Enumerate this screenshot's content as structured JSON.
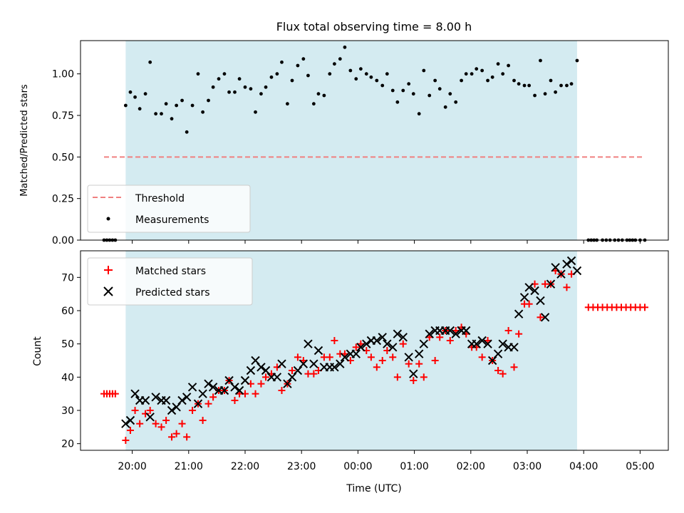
{
  "chart_data": [
    {
      "type": "scatter",
      "title": "Flux total observing time = 8.00 h",
      "ylabel": "Matched/Predicted stars",
      "ylim": [
        0,
        1.2
      ],
      "yticks": [
        "0.00",
        "0.25",
        "0.50",
        "0.75",
        "1.00"
      ],
      "yticks_values": [
        0,
        0.25,
        0.5,
        0.75,
        1.0
      ],
      "threshold": {
        "name": "Threshold",
        "value": 0.5,
        "color": "#f08080",
        "style": "dashed",
        "x_start": "19:30",
        "x_end": "05:05"
      },
      "observing_window": {
        "start": "19:53",
        "end": "03:53",
        "color": "#d4ebf1"
      },
      "legend": {
        "placement": "lower-left",
        "entries": [
          "Threshold",
          "Measurements"
        ]
      },
      "series": [
        {
          "name": "Measurements",
          "color": "#000000",
          "marker": "dot",
          "x": [
            "19:30",
            "19:33",
            "19:36",
            "19:39",
            "19:42",
            "19:53",
            "19:58",
            "20:03",
            "20:08",
            "20:14",
            "20:19",
            "20:25",
            "20:31",
            "20:36",
            "20:42",
            "20:47",
            "20:53",
            "20:58",
            "21:04",
            "21:10",
            "21:15",
            "21:21",
            "21:26",
            "21:32",
            "21:38",
            "21:43",
            "21:49",
            "21:54",
            "22:00",
            "22:06",
            "22:11",
            "22:17",
            "22:22",
            "22:28",
            "22:34",
            "22:39",
            "22:45",
            "22:50",
            "22:56",
            "23:02",
            "23:07",
            "23:13",
            "23:18",
            "23:24",
            "23:30",
            "23:35",
            "23:41",
            "23:46",
            "23:52",
            "23:58",
            "00:03",
            "00:09",
            "00:14",
            "00:20",
            "00:26",
            "00:31",
            "00:37",
            "00:42",
            "00:48",
            "00:54",
            "00:59",
            "01:05",
            "01:10",
            "01:16",
            "01:22",
            "01:27",
            "01:33",
            "01:38",
            "01:44",
            "01:50",
            "01:55",
            "02:01",
            "02:06",
            "02:12",
            "02:18",
            "02:23",
            "02:29",
            "02:34",
            "02:40",
            "02:46",
            "02:51",
            "02:57",
            "03:02",
            "03:08",
            "03:14",
            "03:19",
            "03:25",
            "03:30",
            "03:36",
            "03:42",
            "03:47",
            "03:53",
            "04:05",
            "04:08",
            "04:11",
            "04:14",
            "04:20",
            "04:24",
            "04:28",
            "04:33",
            "04:37",
            "04:41",
            "04:46",
            "04:49",
            "04:52",
            "04:55",
            "05:00",
            "05:05"
          ],
          "y": [
            0,
            0,
            0,
            0,
            0,
            0.81,
            0.89,
            0.86,
            0.79,
            0.88,
            1.07,
            0.76,
            0.76,
            0.82,
            0.73,
            0.81,
            0.84,
            0.65,
            0.81,
            1.0,
            0.77,
            0.84,
            0.92,
            0.97,
            1.0,
            0.89,
            0.89,
            0.97,
            0.92,
            0.91,
            0.77,
            0.88,
            0.92,
            0.98,
            1.0,
            1.07,
            0.82,
            0.96,
            1.05,
            1.09,
            0.99,
            0.82,
            0.88,
            0.87,
            1.0,
            1.06,
            1.09,
            1.16,
            1.02,
            0.97,
            1.03,
            1.0,
            0.98,
            0.96,
            0.93,
            1.0,
            0.9,
            0.83,
            0.9,
            0.94,
            0.88,
            0.76,
            1.02,
            0.87,
            0.96,
            0.91,
            0.8,
            0.88,
            0.83,
            0.96,
            1.0,
            1.0,
            1.03,
            1.02,
            0.96,
            0.98,
            1.06,
            1.0,
            1.05,
            0.96,
            0.94,
            0.93,
            0.93,
            0.87,
            1.08,
            0.88,
            0.96,
            0.89,
            0.93,
            0.93,
            0.94,
            1.08,
            0.0,
            0.0,
            0.0,
            0.0,
            0.0,
            0.0,
            0.0,
            0.0,
            0.0,
            0.0,
            0.0,
            0.0,
            0.0,
            0.0,
            0.0,
            0.0
          ]
        }
      ]
    },
    {
      "type": "scatter",
      "xlabel": "Time (UTC)",
      "ylabel": "Count",
      "ylim": [
        18,
        78
      ],
      "yticks": [
        "20",
        "30",
        "40",
        "50",
        "60",
        "70"
      ],
      "yticks_values": [
        20,
        30,
        40,
        50,
        60,
        70
      ],
      "x_range": [
        "19:05",
        "05:30"
      ],
      "xticks": [
        "20:00",
        "21:00",
        "22:00",
        "23:00",
        "00:00",
        "01:00",
        "02:00",
        "03:00",
        "04:00",
        "05:00"
      ],
      "observing_window": {
        "start": "19:53",
        "end": "03:53",
        "color": "#d4ebf1"
      },
      "legend": {
        "placement": "upper-left",
        "entries": [
          "Matched stars",
          "Predicted stars"
        ]
      },
      "series": [
        {
          "name": "Matched stars",
          "color": "#ff0000",
          "marker": "plus",
          "x": [
            "19:30",
            "19:33",
            "19:36",
            "19:39",
            "19:42",
            "19:53",
            "19:58",
            "20:03",
            "20:08",
            "20:14",
            "20:19",
            "20:25",
            "20:31",
            "20:36",
            "20:42",
            "20:47",
            "20:53",
            "20:58",
            "21:04",
            "21:10",
            "21:15",
            "21:21",
            "21:26",
            "21:32",
            "21:38",
            "21:43",
            "21:49",
            "21:54",
            "22:00",
            "22:06",
            "22:11",
            "22:17",
            "22:22",
            "22:28",
            "22:34",
            "22:39",
            "22:45",
            "22:50",
            "22:56",
            "23:02",
            "23:07",
            "23:13",
            "23:18",
            "23:24",
            "23:30",
            "23:35",
            "23:41",
            "23:46",
            "23:52",
            "23:58",
            "00:03",
            "00:09",
            "00:14",
            "00:20",
            "00:26",
            "00:31",
            "00:37",
            "00:42",
            "00:48",
            "00:54",
            "00:59",
            "01:05",
            "01:10",
            "01:16",
            "01:22",
            "01:27",
            "01:33",
            "01:38",
            "01:44",
            "01:50",
            "01:55",
            "02:01",
            "02:06",
            "02:12",
            "02:18",
            "02:23",
            "02:29",
            "02:34",
            "02:40",
            "02:46",
            "02:51",
            "02:57",
            "03:02",
            "03:08",
            "03:14",
            "03:19",
            "03:25",
            "03:30",
            "03:36",
            "03:42",
            "03:47",
            "04:05",
            "04:10",
            "04:15",
            "04:20",
            "04:25",
            "04:30",
            "04:35",
            "04:40",
            "04:45",
            "04:50",
            "04:55",
            "05:00",
            "05:05"
          ],
          "y": [
            35,
            35,
            35,
            35,
            35,
            21,
            24,
            30,
            26,
            29,
            30,
            26,
            25,
            27,
            22,
            23,
            26,
            22,
            30,
            32,
            27,
            32,
            34,
            36,
            36,
            39,
            33,
            35,
            35,
            38,
            35,
            38,
            40,
            41,
            43,
            36,
            38,
            42,
            46,
            45,
            41,
            41,
            42,
            46,
            46,
            51,
            47,
            47,
            45,
            49,
            50,
            48,
            46,
            43,
            45,
            48,
            46,
            40,
            50,
            44,
            39,
            44,
            40,
            52,
            45,
            52,
            54,
            51,
            54,
            55,
            53,
            49,
            49,
            46,
            51,
            45,
            42,
            41,
            54,
            43,
            53,
            62,
            62,
            68,
            58,
            68,
            68,
            72,
            71,
            67,
            71,
            61,
            61,
            61,
            61,
            61,
            61,
            61,
            61,
            61,
            61,
            61,
            61,
            61
          ]
        },
        {
          "name": "Predicted stars",
          "color": "#000000",
          "marker": "x",
          "x": [
            "19:53",
            "19:58",
            "20:03",
            "20:08",
            "20:14",
            "20:19",
            "20:25",
            "20:31",
            "20:36",
            "20:42",
            "20:47",
            "20:53",
            "20:58",
            "21:04",
            "21:10",
            "21:15",
            "21:21",
            "21:26",
            "21:32",
            "21:38",
            "21:43",
            "21:49",
            "21:54",
            "22:00",
            "22:06",
            "22:11",
            "22:17",
            "22:22",
            "22:28",
            "22:34",
            "22:39",
            "22:45",
            "22:50",
            "22:56",
            "23:02",
            "23:07",
            "23:13",
            "23:18",
            "23:24",
            "23:30",
            "23:35",
            "23:41",
            "23:46",
            "23:52",
            "23:58",
            "00:03",
            "00:09",
            "00:14",
            "00:20",
            "00:26",
            "00:31",
            "00:37",
            "00:42",
            "00:48",
            "00:54",
            "00:59",
            "01:05",
            "01:10",
            "01:16",
            "01:22",
            "01:27",
            "01:33",
            "01:38",
            "01:44",
            "01:50",
            "01:55",
            "02:01",
            "02:06",
            "02:12",
            "02:18",
            "02:23",
            "02:29",
            "02:34",
            "02:40",
            "02:46",
            "02:51",
            "02:57",
            "03:02",
            "03:08",
            "03:14",
            "03:19",
            "03:25",
            "03:30",
            "03:36",
            "03:42",
            "03:47",
            "03:53"
          ],
          "y": [
            26,
            27,
            35,
            33,
            33,
            28,
            34,
            33,
            33,
            30,
            31,
            33,
            34,
            37,
            32,
            35,
            38,
            37,
            36,
            36,
            39,
            37,
            36,
            39,
            42,
            45,
            43,
            42,
            40,
            40,
            44,
            38,
            40,
            42,
            44,
            50,
            44,
            48,
            43,
            43,
            43,
            44,
            46,
            47,
            47,
            49,
            50,
            51,
            51,
            52,
            50,
            49,
            53,
            52,
            46,
            41,
            47,
            50,
            53,
            54,
            54,
            54,
            54,
            53,
            54,
            54,
            50,
            50,
            51,
            50,
            45,
            47,
            50,
            49,
            49,
            59,
            64,
            67,
            66,
            63,
            58,
            68,
            73,
            71,
            74,
            75,
            72
          ]
        }
      ]
    }
  ]
}
